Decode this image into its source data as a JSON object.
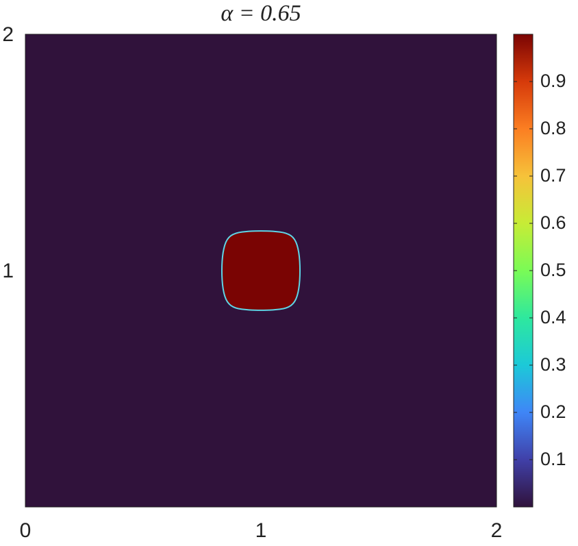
{
  "chart_data": {
    "type": "heatmap",
    "title": "α = 0.65",
    "xlim": [
      0,
      2
    ],
    "ylim": [
      0,
      2
    ],
    "xticks": [
      0,
      1,
      2
    ],
    "yticks": [
      1,
      2
    ],
    "background_value": 0,
    "patches": [
      {
        "value": 1,
        "x": [
          1.167,
          1.162,
          1.145,
          1.11,
          1.05,
          1.0,
          0.95,
          0.89,
          0.855,
          0.838,
          0.833,
          0.838,
          0.855,
          0.89,
          0.95,
          1.0,
          1.05,
          1.11,
          1.145,
          1.162
        ],
        "y": [
          1.0,
          1.08,
          1.135,
          1.16,
          1.167,
          1.168,
          1.167,
          1.16,
          1.135,
          1.08,
          1.0,
          0.92,
          0.865,
          0.84,
          0.833,
          0.832,
          0.833,
          0.84,
          0.865,
          0.92
        ]
      }
    ],
    "colorbar": {
      "clim": [
        0,
        1
      ],
      "ticks": [
        0.1,
        0.2,
        0.3,
        0.4,
        0.5,
        0.6,
        0.7,
        0.8,
        0.9
      ]
    },
    "colormap": [
      "#30123b",
      "#4040a8",
      "#3f86f7",
      "#1cc9d8",
      "#2ee89e",
      "#7afb56",
      "#c7ec36",
      "#f6c23a",
      "#fb7e22",
      "#d63a0a",
      "#7a0403"
    ]
  }
}
